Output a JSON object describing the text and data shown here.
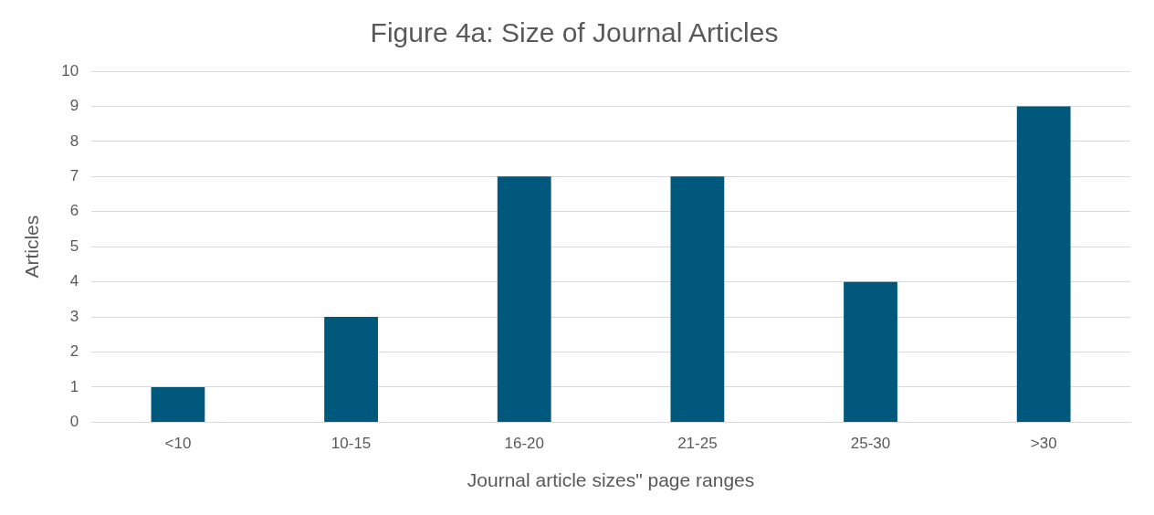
{
  "chart_data": {
    "type": "bar",
    "title": "Figure 4a: Size of Journal Articles",
    "xlabel": "Journal article sizes\" page ranges",
    "ylabel": "Articles",
    "categories": [
      "<10",
      "10-15",
      "16-20",
      "21-25",
      "25-30",
      ">30"
    ],
    "values": [
      1,
      3,
      7,
      7,
      4,
      9
    ],
    "color": "#00587c",
    "ylim": [
      0,
      10
    ],
    "yticks": [
      0,
      1,
      2,
      3,
      4,
      5,
      6,
      7,
      8,
      9,
      10
    ],
    "grid": "y",
    "legend": false
  }
}
